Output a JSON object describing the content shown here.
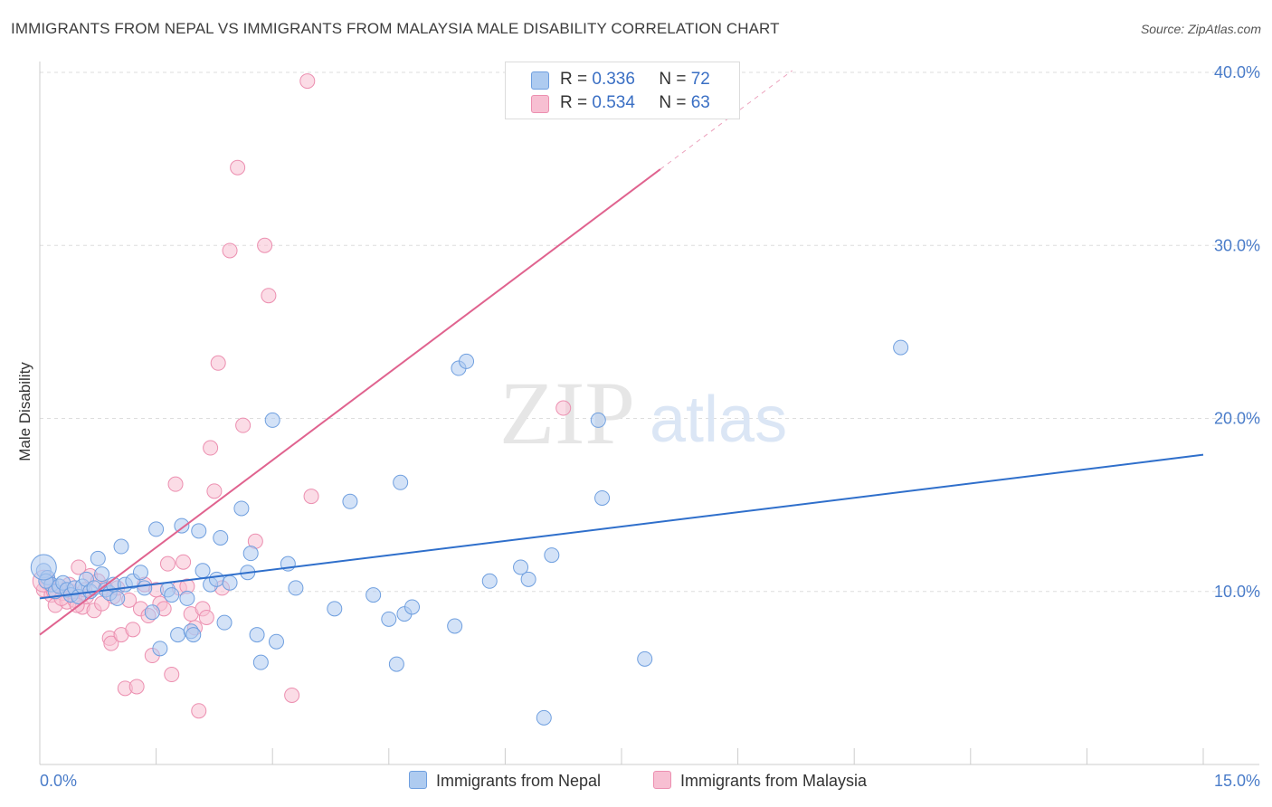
{
  "header": {
    "title": "IMMIGRANTS FROM NEPAL VS IMMIGRANTS FROM MALAYSIA MALE DISABILITY CORRELATION CHART",
    "source": "Source: ZipAtlas.com"
  },
  "legend": {
    "nepal": {
      "r_label": "R =",
      "r_value": "0.336",
      "n_label": "N =",
      "n_value": "72"
    },
    "malaysia": {
      "r_label": "R =",
      "r_value": "0.534",
      "n_label": "N =",
      "n_value": "63"
    }
  },
  "watermark": {
    "part1": "ZIP",
    "part2": "atlas"
  },
  "colors": {
    "nepal_fill": "#aecbf0",
    "nepal_stroke": "#6f9fdf",
    "nepal_line": "#2f6fcb",
    "malaysia_fill": "#f7bfd2",
    "malaysia_stroke": "#ec8fb0",
    "malaysia_line": "#e0638f",
    "grid": "#dddddd",
    "tick_text": "#4a7cc9"
  },
  "chart_data": {
    "type": "scatter",
    "title": "IMMIGRANTS FROM NEPAL VS IMMIGRANTS FROM MALAYSIA MALE DISABILITY CORRELATION CHART",
    "xlabel": "",
    "ylabel": "Male Disability",
    "xlim": [
      0,
      15
    ],
    "ylim": [
      0,
      40
    ],
    "x_tick_labels": [
      "0.0%",
      "15.0%"
    ],
    "y_ticks": [
      {
        "value": 10,
        "label": "10.0%"
      },
      {
        "value": 20,
        "label": "20.0%"
      },
      {
        "value": 30,
        "label": "30.0%"
      },
      {
        "value": 40,
        "label": "40.0%"
      }
    ],
    "grid": "horizontal-dashed",
    "legend_position": "top-center",
    "series": [
      {
        "name": "Immigrants from Nepal",
        "trendline": {
          "x": [
            0.0,
            15.0
          ],
          "y": [
            9.6,
            17.9
          ],
          "extrapolated": false
        },
        "points": [
          [
            0.05,
            11.2
          ],
          [
            0.1,
            10.8
          ],
          [
            0.15,
            10.4
          ],
          [
            0.2,
            10.0
          ],
          [
            0.25,
            10.3
          ],
          [
            0.3,
            10.5
          ],
          [
            0.35,
            10.1
          ],
          [
            0.4,
            9.8
          ],
          [
            0.45,
            10.2
          ],
          [
            0.5,
            9.7
          ],
          [
            0.55,
            10.3
          ],
          [
            0.6,
            10.7
          ],
          [
            0.65,
            10.0
          ],
          [
            0.7,
            10.2
          ],
          [
            0.75,
            11.9
          ],
          [
            0.8,
            11.0
          ],
          [
            0.85,
            10.1
          ],
          [
            0.9,
            9.9
          ],
          [
            0.95,
            10.4
          ],
          [
            1.0,
            9.6
          ],
          [
            1.05,
            12.6
          ],
          [
            1.1,
            10.4
          ],
          [
            1.2,
            10.6
          ],
          [
            1.3,
            11.1
          ],
          [
            1.35,
            10.2
          ],
          [
            1.45,
            8.8
          ],
          [
            1.5,
            13.6
          ],
          [
            1.55,
            6.7
          ],
          [
            1.65,
            10.1
          ],
          [
            1.7,
            9.8
          ],
          [
            1.78,
            7.5
          ],
          [
            1.83,
            13.8
          ],
          [
            1.9,
            9.6
          ],
          [
            1.95,
            7.7
          ],
          [
            1.98,
            7.5
          ],
          [
            2.05,
            13.5
          ],
          [
            2.1,
            11.2
          ],
          [
            2.2,
            10.4
          ],
          [
            2.28,
            10.7
          ],
          [
            2.33,
            13.1
          ],
          [
            2.38,
            8.2
          ],
          [
            2.45,
            10.5
          ],
          [
            2.6,
            14.8
          ],
          [
            2.68,
            11.1
          ],
          [
            2.72,
            12.2
          ],
          [
            2.8,
            7.5
          ],
          [
            2.85,
            5.9
          ],
          [
            3.0,
            19.9
          ],
          [
            3.05,
            7.1
          ],
          [
            3.2,
            11.6
          ],
          [
            3.3,
            10.2
          ],
          [
            3.8,
            9.0
          ],
          [
            4.0,
            15.2
          ],
          [
            4.3,
            9.8
          ],
          [
            4.5,
            8.4
          ],
          [
            4.6,
            5.8
          ],
          [
            4.65,
            16.3
          ],
          [
            4.7,
            8.7
          ],
          [
            4.8,
            9.1
          ],
          [
            5.35,
            8.0
          ],
          [
            5.4,
            22.9
          ],
          [
            5.5,
            23.3
          ],
          [
            5.8,
            10.6
          ],
          [
            6.2,
            11.4
          ],
          [
            6.3,
            10.7
          ],
          [
            6.5,
            2.7
          ],
          [
            6.6,
            12.1
          ],
          [
            7.2,
            19.9
          ],
          [
            7.25,
            15.4
          ],
          [
            7.8,
            6.1
          ],
          [
            11.1,
            24.1
          ],
          [
            0.08,
            10.6
          ]
        ]
      },
      {
        "name": "Immigrants from Malaysia",
        "trendline": {
          "x": [
            0.0,
            8.0
          ],
          "y": [
            7.5,
            34.4
          ],
          "extrapolated": false,
          "dashed_extension": {
            "x": [
              8.0,
              9.7
            ],
            "y": [
              34.4,
              40.1
            ]
          }
        },
        "points": [
          [
            0.05,
            10.1
          ],
          [
            0.1,
            10.5
          ],
          [
            0.15,
            9.8
          ],
          [
            0.2,
            9.2
          ],
          [
            0.25,
            10.3
          ],
          [
            0.3,
            9.9
          ],
          [
            0.35,
            9.4
          ],
          [
            0.4,
            10.0
          ],
          [
            0.45,
            9.5
          ],
          [
            0.5,
            11.4
          ],
          [
            0.55,
            9.1
          ],
          [
            0.6,
            9.7
          ],
          [
            0.65,
            10.9
          ],
          [
            0.7,
            8.9
          ],
          [
            0.75,
            10.6
          ],
          [
            0.8,
            9.3
          ],
          [
            0.85,
            10.2
          ],
          [
            0.9,
            7.3
          ],
          [
            0.92,
            7.0
          ],
          [
            0.95,
            9.7
          ],
          [
            1.0,
            10.2
          ],
          [
            1.05,
            7.5
          ],
          [
            1.1,
            4.4
          ],
          [
            1.15,
            9.5
          ],
          [
            1.2,
            7.8
          ],
          [
            1.25,
            4.5
          ],
          [
            1.3,
            9.0
          ],
          [
            1.35,
            10.4
          ],
          [
            1.4,
            8.6
          ],
          [
            1.45,
            6.3
          ],
          [
            1.5,
            10.1
          ],
          [
            1.55,
            9.3
          ],
          [
            1.6,
            9.0
          ],
          [
            1.65,
            11.6
          ],
          [
            1.7,
            5.2
          ],
          [
            1.75,
            16.2
          ],
          [
            1.8,
            10.2
          ],
          [
            1.85,
            11.7
          ],
          [
            1.9,
            10.3
          ],
          [
            1.95,
            8.7
          ],
          [
            2.0,
            7.9
          ],
          [
            2.05,
            3.1
          ],
          [
            2.1,
            9.0
          ],
          [
            2.15,
            8.5
          ],
          [
            2.2,
            18.3
          ],
          [
            2.25,
            15.8
          ],
          [
            2.3,
            23.2
          ],
          [
            2.35,
            10.2
          ],
          [
            2.45,
            29.7
          ],
          [
            2.55,
            34.5
          ],
          [
            2.62,
            19.6
          ],
          [
            2.78,
            12.9
          ],
          [
            2.9,
            30.0
          ],
          [
            2.95,
            27.1
          ],
          [
            3.25,
            4.0
          ],
          [
            3.5,
            15.5
          ],
          [
            3.45,
            39.5
          ],
          [
            6.75,
            20.6
          ],
          [
            0.18,
            10.0
          ],
          [
            0.28,
            9.6
          ],
          [
            0.38,
            10.4
          ],
          [
            0.48,
            9.2
          ],
          [
            0.58,
            10.1
          ]
        ]
      }
    ]
  },
  "bottom_legend": {
    "nepal_label": "Immigrants from Nepal",
    "malaysia_label": "Immigrants from Malaysia"
  }
}
